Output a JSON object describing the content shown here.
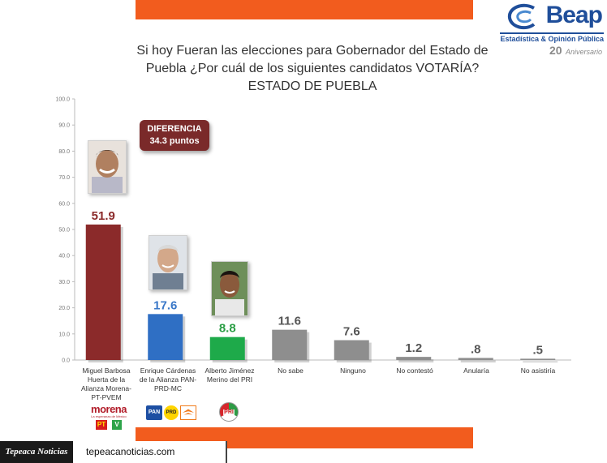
{
  "header": {
    "logo_word": "Beap",
    "logo_sub": "Estadística & Opinión Pública",
    "logo_anniv_num": "20",
    "logo_anniv_text": "Aniversario"
  },
  "title": {
    "line1": "Si hoy Fueran las elecciones para Gobernador del Estado de",
    "line2": "Puebla ¿Por cuál de los siguientes candidatos VOTARÍA?",
    "line3": "ESTADO DE PUEBLA"
  },
  "callout": {
    "line1": "DIFERENCIA",
    "line2": "34.3 puntos"
  },
  "footer": {
    "brand": "Tepeaca Noticias",
    "url": "tepeacanoticias.com"
  },
  "parties": {
    "morena_word": "morena",
    "morena_tag": "La esperanza de México",
    "pt": "PT",
    "pvem": "V",
    "pan": "PAN",
    "prd": "PRD",
    "pri": "PRI"
  },
  "chart_data": {
    "type": "bar",
    "title": "Si hoy Fueran las elecciones para Gobernador del Estado de Puebla ¿Por cuál de los siguientes candidatos VOTARÍA? ESTADO DE PUEBLA",
    "categories": [
      "Miguel Barbosa Huerta de la Alianza Morena-PT-PVEM",
      "Enrique Cárdenas de la Alianza PAN-PRD-MC",
      "Alberto Jiménez Merino del PRI",
      "No sabe",
      "Ninguno",
      "No contestó",
      "Anularía",
      "No asistiría"
    ],
    "values": [
      51.9,
      17.6,
      8.8,
      11.6,
      7.6,
      1.2,
      0.8,
      0.5
    ],
    "value_labels": [
      "51.9",
      "17.6",
      "8.8",
      "11.6",
      "7.6",
      "1.2",
      ".8",
      ".5"
    ],
    "bar_colors": [
      "#8b2a2a",
      "#2f6fc4",
      "#1eaa4a",
      "#8e8e8e",
      "#8e8e8e",
      "#8e8e8e",
      "#8e8e8e",
      "#8e8e8e"
    ],
    "label_colors": [
      "#8b2a2a",
      "#3a78c8",
      "#2a9d44",
      "#555555",
      "#555555",
      "#555555",
      "#555555",
      "#555555"
    ],
    "ylim": [
      0,
      100
    ],
    "yticks": [
      "0.0",
      "10.0",
      "20.0",
      "30.0",
      "40.0",
      "50.0",
      "60.0",
      "70.0",
      "80.0",
      "90.0",
      "100.0"
    ],
    "grid": false,
    "xlabel": "",
    "ylabel": ""
  }
}
